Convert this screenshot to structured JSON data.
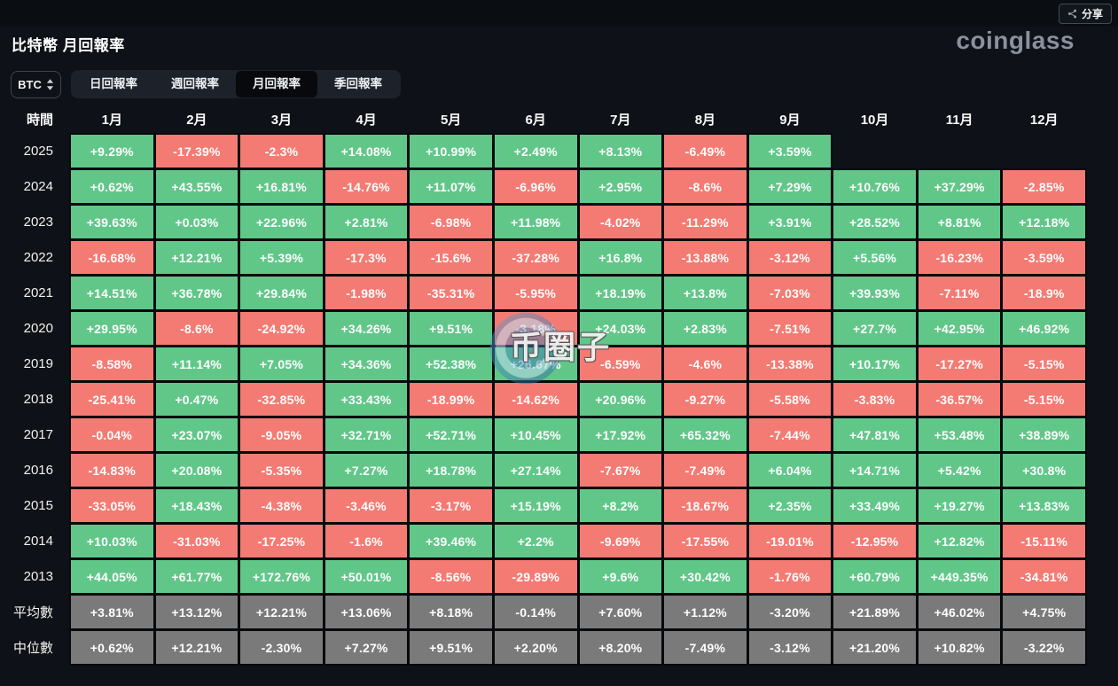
{
  "topbar": {
    "share_label": "分享"
  },
  "header": {
    "title": "比特幣 月回報率",
    "logo": "coinglass"
  },
  "controls": {
    "coin_select": {
      "value": "BTC"
    },
    "tabs": [
      {
        "label": "日回報率",
        "active": false
      },
      {
        "label": "週回報率",
        "active": false
      },
      {
        "label": "月回報率",
        "active": true
      },
      {
        "label": "季回報率",
        "active": false
      }
    ]
  },
  "watermark": {
    "text": "币圈子"
  },
  "colors": {
    "positive": "#61c789",
    "negative": "#f47b73",
    "summary": "#7a7a7a",
    "background": "#0e1117"
  },
  "chart_data": {
    "type": "table",
    "title": "比特幣 月回報率",
    "time_header": "時間",
    "months": [
      "1月",
      "2月",
      "3月",
      "4月",
      "5月",
      "6月",
      "7月",
      "8月",
      "9月",
      "10月",
      "11月",
      "12月"
    ],
    "rows": [
      {
        "label": "2025",
        "type": "year",
        "values": [
          "+9.29%",
          "-17.39%",
          "-2.3%",
          "+14.08%",
          "+10.99%",
          "+2.49%",
          "+8.13%",
          "-6.49%",
          "+3.59%",
          "",
          "",
          ""
        ]
      },
      {
        "label": "2024",
        "type": "year",
        "values": [
          "+0.62%",
          "+43.55%",
          "+16.81%",
          "-14.76%",
          "+11.07%",
          "-6.96%",
          "+2.95%",
          "-8.6%",
          "+7.29%",
          "+10.76%",
          "+37.29%",
          "-2.85%"
        ]
      },
      {
        "label": "2023",
        "type": "year",
        "values": [
          "+39.63%",
          "+0.03%",
          "+22.96%",
          "+2.81%",
          "-6.98%",
          "+11.98%",
          "-4.02%",
          "-11.29%",
          "+3.91%",
          "+28.52%",
          "+8.81%",
          "+12.18%"
        ]
      },
      {
        "label": "2022",
        "type": "year",
        "values": [
          "-16.68%",
          "+12.21%",
          "+5.39%",
          "-17.3%",
          "-15.6%",
          "-37.28%",
          "+16.8%",
          "-13.88%",
          "-3.12%",
          "+5.56%",
          "-16.23%",
          "-3.59%"
        ]
      },
      {
        "label": "2021",
        "type": "year",
        "values": [
          "+14.51%",
          "+36.78%",
          "+29.84%",
          "-1.98%",
          "-35.31%",
          "-5.95%",
          "+18.19%",
          "+13.8%",
          "-7.03%",
          "+39.93%",
          "-7.11%",
          "-18.9%"
        ]
      },
      {
        "label": "2020",
        "type": "year",
        "values": [
          "+29.95%",
          "-8.6%",
          "-24.92%",
          "+34.26%",
          "+9.51%",
          "-3.18%",
          "+24.03%",
          "+2.83%",
          "-7.51%",
          "+27.7%",
          "+42.95%",
          "+46.92%"
        ]
      },
      {
        "label": "2019",
        "type": "year",
        "values": [
          "-8.58%",
          "+11.14%",
          "+7.05%",
          "+34.36%",
          "+52.38%",
          "+26.67%",
          "-6.59%",
          "-4.6%",
          "-13.38%",
          "+10.17%",
          "-17.27%",
          "-5.15%"
        ]
      },
      {
        "label": "2018",
        "type": "year",
        "values": [
          "-25.41%",
          "+0.47%",
          "-32.85%",
          "+33.43%",
          "-18.99%",
          "-14.62%",
          "+20.96%",
          "-9.27%",
          "-5.58%",
          "-3.83%",
          "-36.57%",
          "-5.15%"
        ]
      },
      {
        "label": "2017",
        "type": "year",
        "values": [
          "-0.04%",
          "+23.07%",
          "-9.05%",
          "+32.71%",
          "+52.71%",
          "+10.45%",
          "+17.92%",
          "+65.32%",
          "-7.44%",
          "+47.81%",
          "+53.48%",
          "+38.89%"
        ]
      },
      {
        "label": "2016",
        "type": "year",
        "values": [
          "-14.83%",
          "+20.08%",
          "-5.35%",
          "+7.27%",
          "+18.78%",
          "+27.14%",
          "-7.67%",
          "-7.49%",
          "+6.04%",
          "+14.71%",
          "+5.42%",
          "+30.8%"
        ]
      },
      {
        "label": "2015",
        "type": "year",
        "values": [
          "-33.05%",
          "+18.43%",
          "-4.38%",
          "-3.46%",
          "-3.17%",
          "+15.19%",
          "+8.2%",
          "-18.67%",
          "+2.35%",
          "+33.49%",
          "+19.27%",
          "+13.83%"
        ]
      },
      {
        "label": "2014",
        "type": "year",
        "values": [
          "+10.03%",
          "-31.03%",
          "-17.25%",
          "-1.6%",
          "+39.46%",
          "+2.2%",
          "-9.69%",
          "-17.55%",
          "-19.01%",
          "-12.95%",
          "+12.82%",
          "-15.11%"
        ]
      },
      {
        "label": "2013",
        "type": "year",
        "values": [
          "+44.05%",
          "+61.77%",
          "+172.76%",
          "+50.01%",
          "-8.56%",
          "-29.89%",
          "+9.6%",
          "+30.42%",
          "-1.76%",
          "+60.79%",
          "+449.35%",
          "-34.81%"
        ]
      },
      {
        "label": "平均數",
        "type": "summary",
        "values": [
          "+3.81%",
          "+13.12%",
          "+12.21%",
          "+13.06%",
          "+8.18%",
          "-0.14%",
          "+7.60%",
          "+1.12%",
          "-3.20%",
          "+21.89%",
          "+46.02%",
          "+4.75%"
        ]
      },
      {
        "label": "中位數",
        "type": "summary",
        "values": [
          "+0.62%",
          "+12.21%",
          "-2.30%",
          "+7.27%",
          "+9.51%",
          "+2.20%",
          "+8.20%",
          "-7.49%",
          "-3.12%",
          "+21.20%",
          "+10.82%",
          "-3.22%"
        ]
      }
    ]
  }
}
